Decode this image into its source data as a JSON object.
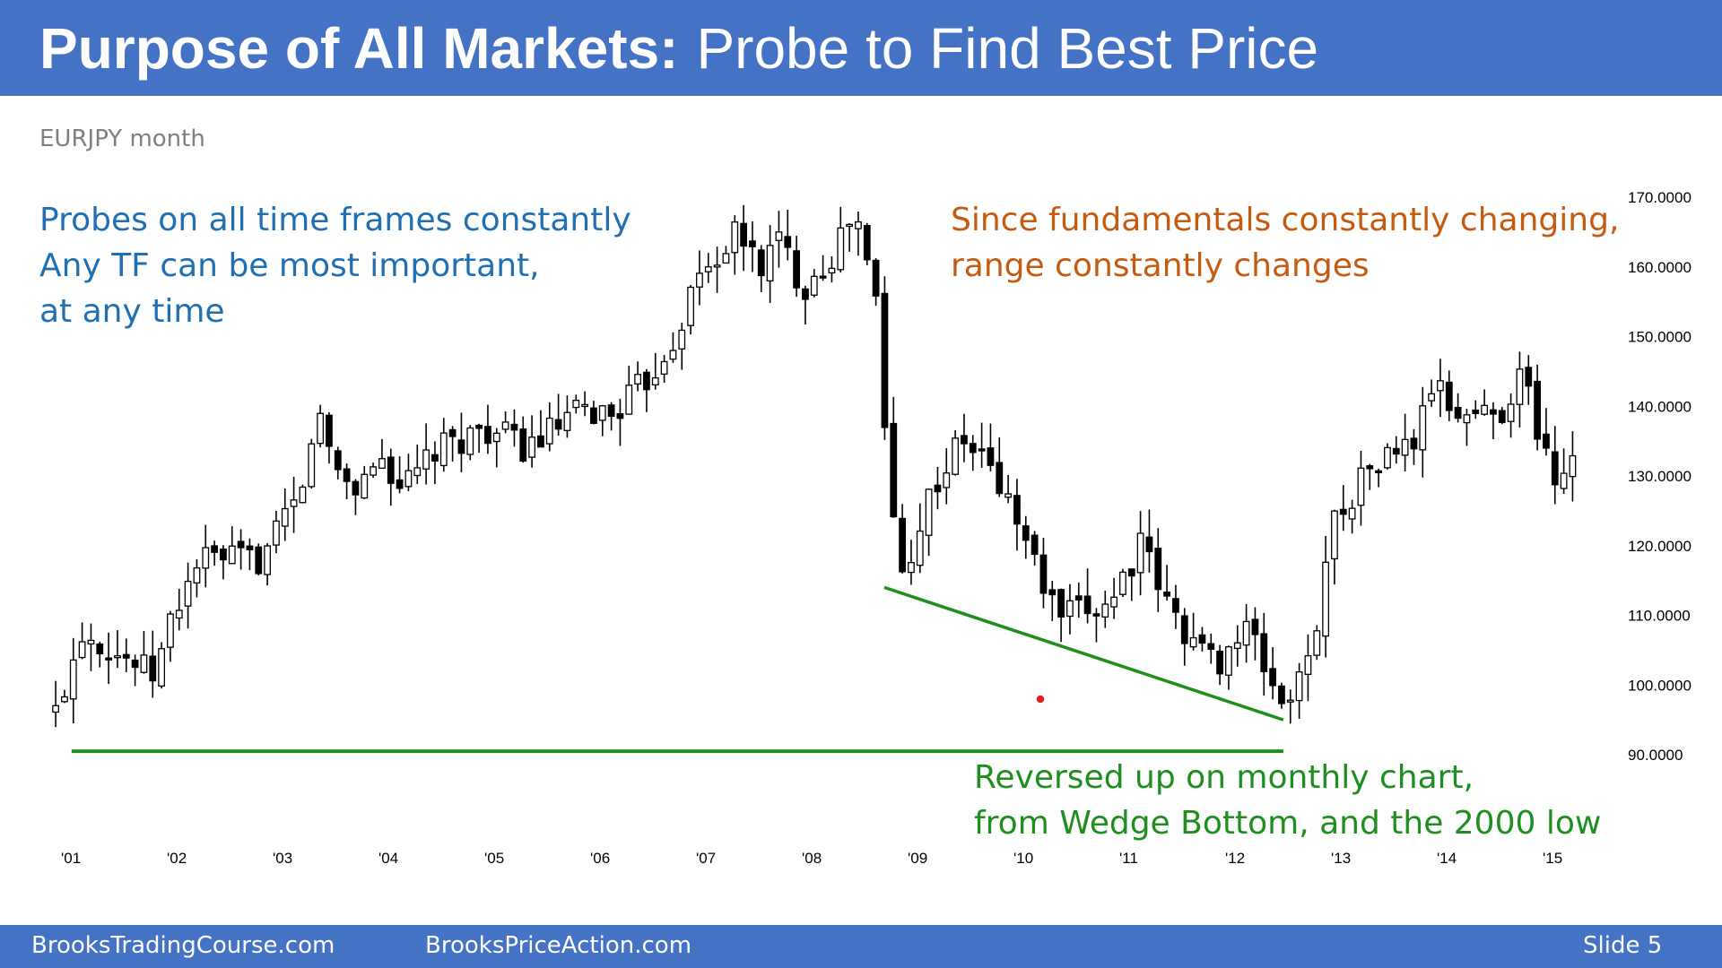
{
  "slide": {
    "title_bold": "Purpose of All Markets:",
    "title_rest": "Probe to Find Best Price",
    "subtitle": "EURJPY month",
    "left_notes": [
      "Probes on all time frames constantly",
      "Any TF can be most important,",
      "at any time"
    ],
    "right_notes": [
      "Since fundamentals constantly changing,",
      "range constantly changes"
    ],
    "bottom_notes": [
      "Reversed up on monthly chart,",
      "from Wedge Bottom, and the 2000 low"
    ],
    "footer_left": "BrooksTradingCourse.com",
    "footer_mid": "BrooksPriceAction.com",
    "footer_right": "Slide  5"
  },
  "colors": {
    "header_bg": "#4472c4",
    "blue_text": "#1f6fb2",
    "orange_text": "#c55a11",
    "green": "#1e8f1e"
  },
  "chart_data": {
    "type": "candlestick",
    "subtitle": "EURJPY month",
    "ylim": [
      89,
      171
    ],
    "y_ticks": [
      "170.0000",
      "160.0000",
      "150.0000",
      "140.0000",
      "130.0000",
      "120.0000",
      "110.0000",
      "100.0000",
      "90.0000"
    ],
    "x_ticks": [
      "'01",
      "'02",
      "'03",
      "'04",
      "'05",
      "'06",
      "'07",
      "'08",
      "'09",
      "'10",
      "'11",
      "'12",
      "'13",
      "'14",
      "'15"
    ],
    "anchors": [
      {
        "t": 2000.95,
        "v": 96
      },
      {
        "t": 2001.2,
        "v": 108
      },
      {
        "t": 2001.9,
        "v": 101
      },
      {
        "t": 2002.0,
        "v": 108
      },
      {
        "t": 2002.3,
        "v": 118
      },
      {
        "t": 2002.9,
        "v": 118
      },
      {
        "t": 2003.3,
        "v": 128
      },
      {
        "t": 2003.4,
        "v": 140
      },
      {
        "t": 2003.6,
        "v": 131
      },
      {
        "t": 2003.8,
        "v": 128
      },
      {
        "t": 2004.0,
        "v": 133
      },
      {
        "t": 2004.25,
        "v": 128
      },
      {
        "t": 2004.5,
        "v": 133
      },
      {
        "t": 2005.0,
        "v": 137
      },
      {
        "t": 2005.4,
        "v": 134
      },
      {
        "t": 2005.9,
        "v": 139
      },
      {
        "t": 2006.2,
        "v": 139
      },
      {
        "t": 2006.5,
        "v": 143
      },
      {
        "t": 2006.8,
        "v": 150
      },
      {
        "t": 2007.0,
        "v": 158
      },
      {
        "t": 2007.4,
        "v": 165
      },
      {
        "t": 2007.6,
        "v": 160
      },
      {
        "t": 2007.8,
        "v": 164
      },
      {
        "t": 2008.0,
        "v": 157
      },
      {
        "t": 2008.3,
        "v": 162
      },
      {
        "t": 2008.5,
        "v": 168
      },
      {
        "t": 2008.62,
        "v": 160
      },
      {
        "t": 2008.75,
        "v": 152
      },
      {
        "t": 2008.8,
        "v": 130
      },
      {
        "t": 2008.95,
        "v": 116
      },
      {
        "t": 2009.2,
        "v": 127
      },
      {
        "t": 2009.5,
        "v": 135
      },
      {
        "t": 2009.7,
        "v": 133
      },
      {
        "t": 2010.0,
        "v": 125
      },
      {
        "t": 2010.4,
        "v": 110
      },
      {
        "t": 2010.6,
        "v": 110
      },
      {
        "t": 2010.9,
        "v": 112
      },
      {
        "t": 2011.2,
        "v": 120
      },
      {
        "t": 2011.5,
        "v": 110
      },
      {
        "t": 2011.9,
        "v": 103
      },
      {
        "t": 2012.2,
        "v": 108
      },
      {
        "t": 2012.55,
        "v": 97
      },
      {
        "t": 2012.8,
        "v": 103
      },
      {
        "t": 2013.0,
        "v": 123
      },
      {
        "t": 2013.35,
        "v": 131
      },
      {
        "t": 2013.8,
        "v": 135
      },
      {
        "t": 2013.95,
        "v": 143
      },
      {
        "t": 2014.2,
        "v": 139
      },
      {
        "t": 2014.6,
        "v": 139
      },
      {
        "t": 2014.8,
        "v": 145
      },
      {
        "t": 2014.9,
        "v": 140
      },
      {
        "t": 2015.0,
        "v": 134
      },
      {
        "t": 2015.15,
        "v": 129
      },
      {
        "t": 2015.35,
        "v": 136
      }
    ],
    "annotations": [
      {
        "type": "trendline",
        "label": "Wedge Bottom",
        "from": {
          "t": 2008.78,
          "v": 114
        },
        "to": {
          "t": 2012.55,
          "v": 95
        },
        "color": "#1e8f1e"
      },
      {
        "type": "horizontal-line",
        "label": "2000 low",
        "value": 90.5,
        "from_t": 2001.1,
        "to_t": 2012.55,
        "color": "#1e8f1e"
      }
    ]
  }
}
